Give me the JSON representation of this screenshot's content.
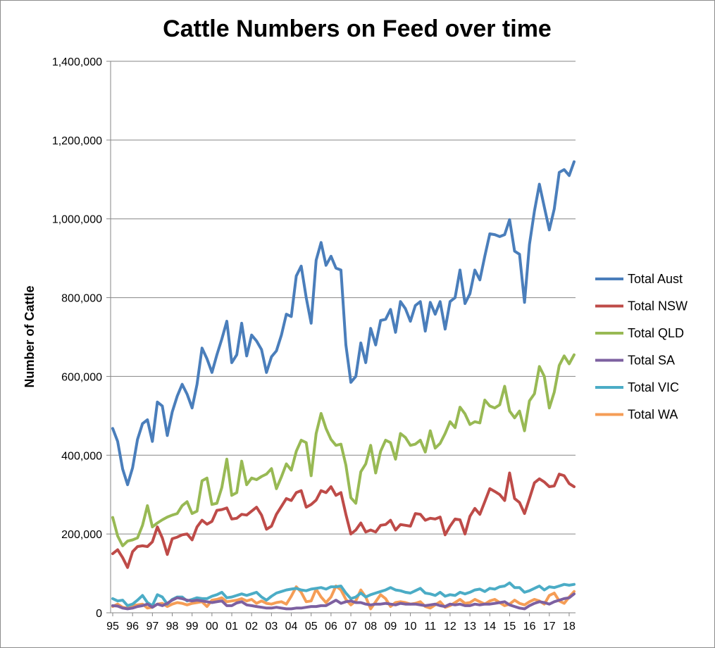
{
  "chart_data": {
    "type": "line",
    "title": "Cattle Numbers on Feed over time",
    "xlabel": "",
    "ylabel": "Number of Cattle",
    "ylim": [
      0,
      1400000
    ],
    "y_ticks": [
      "0",
      "200,000",
      "400,000",
      "600,000",
      "800,000",
      "1,000,000",
      "1,200,000",
      "1,400,000"
    ],
    "x_tick_labels": [
      "95",
      "96",
      "97",
      "98",
      "99",
      "00",
      "01",
      "02",
      "03",
      "04",
      "05",
      "06",
      "07",
      "08",
      "09",
      "10",
      "11",
      "12",
      "13",
      "14",
      "15",
      "16",
      "17",
      "18"
    ],
    "x_start_year": 1995,
    "points_per_year": 4,
    "grid": "horizontal",
    "legend_position": "right",
    "series": [
      {
        "name": "Total Aust",
        "color": "#4a7ebb",
        "values": [
          468000,
          435000,
          365000,
          325000,
          368000,
          440000,
          480000,
          490000,
          435000,
          535000,
          525000,
          450000,
          510000,
          550000,
          580000,
          555000,
          520000,
          580000,
          672000,
          645000,
          610000,
          655000,
          695000,
          740000,
          635000,
          655000,
          735000,
          652000,
          705000,
          690000,
          668000,
          610000,
          650000,
          665000,
          705000,
          758000,
          752000,
          855000,
          880000,
          800000,
          735000,
          895000,
          940000,
          882000,
          905000,
          875000,
          870000,
          680000,
          585000,
          600000,
          685000,
          635000,
          722000,
          680000,
          742000,
          745000,
          770000,
          712000,
          790000,
          772000,
          740000,
          780000,
          790000,
          715000,
          788000,
          758000,
          790000,
          720000,
          790000,
          800000,
          870000,
          785000,
          810000,
          870000,
          845000,
          905000,
          962000,
          960000,
          955000,
          960000,
          998000,
          918000,
          910000,
          788000,
          935000,
          1020000,
          1088000,
          1030000,
          972000,
          1025000,
          1118000,
          1125000,
          1110000,
          1145000
        ]
      },
      {
        "name": "Total NSW",
        "color": "#be4b48",
        "values": [
          150000,
          160000,
          140000,
          115000,
          155000,
          168000,
          170000,
          168000,
          180000,
          218000,
          190000,
          148000,
          188000,
          192000,
          198000,
          200000,
          185000,
          218000,
          235000,
          225000,
          232000,
          260000,
          262000,
          266000,
          238000,
          240000,
          250000,
          248000,
          258000,
          268000,
          248000,
          212000,
          220000,
          250000,
          270000,
          290000,
          285000,
          305000,
          310000,
          268000,
          275000,
          286000,
          310000,
          305000,
          320000,
          298000,
          305000,
          250000,
          200000,
          210000,
          228000,
          205000,
          210000,
          205000,
          222000,
          224000,
          235000,
          210000,
          224000,
          222000,
          220000,
          252000,
          250000,
          235000,
          240000,
          238000,
          243000,
          198000,
          220000,
          238000,
          236000,
          200000,
          245000,
          265000,
          250000,
          282000,
          315000,
          308000,
          300000,
          285000,
          355000,
          290000,
          280000,
          252000,
          290000,
          330000,
          340000,
          332000,
          320000,
          322000,
          352000,
          348000,
          328000,
          320000
        ]
      },
      {
        "name": "Total QLD",
        "color": "#98b954",
        "values": [
          242000,
          195000,
          170000,
          182000,
          185000,
          190000,
          222000,
          272000,
          218000,
          228000,
          236000,
          243000,
          248000,
          252000,
          272000,
          282000,
          252000,
          258000,
          335000,
          342000,
          275000,
          278000,
          318000,
          390000,
          298000,
          305000,
          385000,
          325000,
          342000,
          338000,
          346000,
          352000,
          366000,
          315000,
          345000,
          378000,
          362000,
          410000,
          438000,
          432000,
          348000,
          455000,
          506000,
          468000,
          440000,
          425000,
          428000,
          375000,
          292000,
          278000,
          358000,
          378000,
          425000,
          355000,
          410000,
          438000,
          432000,
          390000,
          455000,
          445000,
          425000,
          428000,
          438000,
          408000,
          462000,
          418000,
          430000,
          455000,
          485000,
          470000,
          522000,
          505000,
          478000,
          485000,
          482000,
          540000,
          525000,
          520000,
          528000,
          575000,
          512000,
          495000,
          512000,
          462000,
          538000,
          556000,
          625000,
          600000,
          520000,
          560000,
          628000,
          652000,
          632000,
          655000
        ]
      },
      {
        "name": "Total SA",
        "color": "#7d60a0",
        "values": [
          18000,
          17000,
          12000,
          10000,
          12000,
          16000,
          18000,
          22000,
          14000,
          22000,
          18000,
          24000,
          32000,
          38000,
          36000,
          32000,
          30000,
          32000,
          30000,
          28000,
          26000,
          28000,
          30000,
          18000,
          18000,
          25000,
          28000,
          20000,
          18000,
          16000,
          14000,
          12000,
          12000,
          14000,
          12000,
          10000,
          10000,
          12000,
          12000,
          14000,
          16000,
          16000,
          18000,
          18000,
          25000,
          32000,
          24000,
          28000,
          30000,
          26000,
          26000,
          22000,
          20000,
          22000,
          22000,
          24000,
          22000,
          20000,
          24000,
          22000,
          22000,
          22000,
          20000,
          18000,
          20000,
          22000,
          18000,
          16000,
          22000,
          20000,
          22000,
          18000,
          18000,
          22000,
          20000,
          22000,
          22000,
          24000,
          26000,
          28000,
          20000,
          16000,
          12000,
          10000,
          18000,
          24000,
          28000,
          26000,
          22000,
          28000,
          32000,
          36000,
          38000,
          48000
        ]
      },
      {
        "name": "Total VIC",
        "color": "#4bacc6",
        "values": [
          36000,
          30000,
          32000,
          18000,
          22000,
          32000,
          44000,
          26000,
          18000,
          46000,
          40000,
          22000,
          34000,
          40000,
          40000,
          30000,
          34000,
          38000,
          36000,
          36000,
          42000,
          46000,
          52000,
          38000,
          40000,
          44000,
          48000,
          44000,
          48000,
          52000,
          40000,
          32000,
          42000,
          50000,
          54000,
          58000,
          60000,
          62000,
          58000,
          56000,
          60000,
          62000,
          64000,
          60000,
          66000,
          66000,
          68000,
          50000,
          36000,
          40000,
          50000,
          40000,
          46000,
          50000,
          54000,
          58000,
          64000,
          58000,
          56000,
          52000,
          50000,
          56000,
          62000,
          50000,
          48000,
          44000,
          52000,
          42000,
          46000,
          44000,
          52000,
          48000,
          52000,
          58000,
          60000,
          54000,
          62000,
          60000,
          66000,
          68000,
          76000,
          64000,
          64000,
          52000,
          56000,
          62000,
          68000,
          58000,
          66000,
          64000,
          68000,
          72000,
          70000,
          72000
        ]
      },
      {
        "name": "Total WA",
        "color": "#f59d56",
        "values": [
          16000,
          22000,
          14000,
          12000,
          18000,
          20000,
          22000,
          12000,
          14000,
          22000,
          24000,
          16000,
          22000,
          26000,
          24000,
          20000,
          24000,
          26000,
          28000,
          16000,
          32000,
          34000,
          38000,
          28000,
          30000,
          32000,
          36000,
          30000,
          34000,
          24000,
          30000,
          24000,
          22000,
          26000,
          28000,
          22000,
          42000,
          66000,
          52000,
          28000,
          30000,
          60000,
          40000,
          26000,
          40000,
          68000,
          58000,
          34000,
          20000,
          30000,
          58000,
          40000,
          10000,
          28000,
          46000,
          36000,
          16000,
          26000,
          28000,
          26000,
          22000,
          24000,
          28000,
          16000,
          12000,
          20000,
          28000,
          14000,
          18000,
          26000,
          34000,
          24000,
          26000,
          34000,
          28000,
          22000,
          30000,
          34000,
          26000,
          18000,
          22000,
          32000,
          24000,
          20000,
          28000,
          34000,
          30000,
          22000,
          44000,
          50000,
          30000,
          24000,
          40000,
          54000
        ]
      }
    ]
  }
}
